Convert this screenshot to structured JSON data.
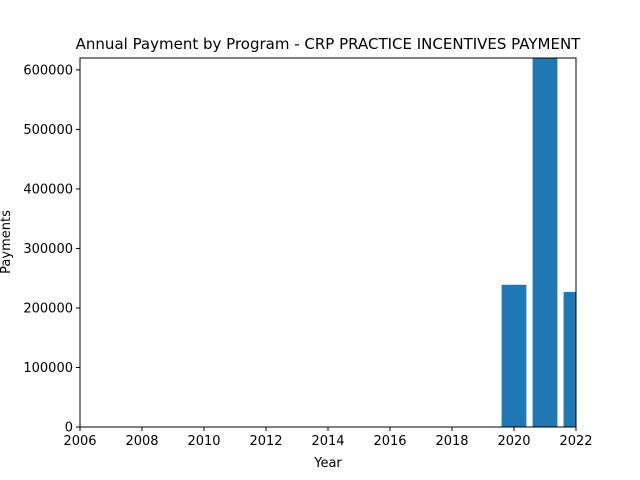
{
  "chart_data": {
    "type": "bar",
    "title": "Annual Payment by Program - CRP PRACTICE INCENTIVES PAYMENT",
    "xlabel": "Year",
    "ylabel": "Payments",
    "xlim": [
      2006,
      2022
    ],
    "ylim": [
      0,
      620000
    ],
    "x_ticks": [
      2006,
      2008,
      2010,
      2012,
      2014,
      2016,
      2018,
      2020,
      2022
    ],
    "y_ticks": [
      0,
      100000,
      200000,
      300000,
      400000,
      500000,
      600000
    ],
    "bar_width": 0.8,
    "grid": false,
    "legend": "none",
    "series": [
      {
        "x": [
          2020,
          2021,
          2022
        ],
        "values": [
          239000,
          640000,
          227000
        ]
      }
    ],
    "colors": {
      "bar": "#1f77b4",
      "axis": "#000000",
      "background": "#ffffff"
    }
  }
}
